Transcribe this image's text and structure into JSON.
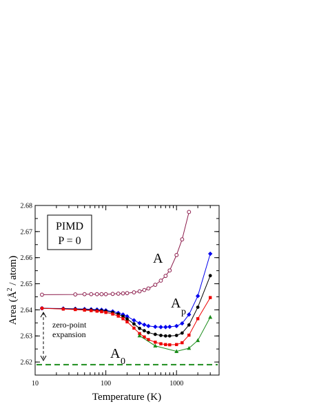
{
  "chart_data": {
    "type": "line",
    "xlabel": "Temperature  (K)",
    "ylabel_parts": {
      "prefix": "Area  (",
      "unit": "Å",
      "superscript": "2",
      "suffix": " / atom)"
    },
    "xscale": "log",
    "xlim": [
      10,
      4000
    ],
    "ylim": [
      2.615,
      2.68
    ],
    "x_ticks": [
      10,
      100,
      1000
    ],
    "x_tick_labels": [
      "10",
      "100",
      "1000"
    ],
    "y_ticks": [
      2.62,
      2.63,
      2.64,
      2.65,
      2.66,
      2.67,
      2.68
    ],
    "y_tick_labels": [
      "2.62",
      "2.63",
      "2.64",
      "2.65",
      "2.66",
      "2.67",
      "2.68"
    ],
    "grid": false,
    "legend_box": {
      "line1": "PIMD",
      "line2": "P = 0"
    },
    "series": [
      {
        "name": "A",
        "color": "#8b1a4a",
        "marker": "open-circle",
        "x": [
          12.5,
          37,
          50,
          62,
          75,
          87,
          100,
          125,
          150,
          175,
          200,
          250,
          300,
          350,
          400,
          500,
          600,
          700,
          800,
          1000,
          1200,
          1500
        ],
        "y": [
          2.6458,
          2.6459,
          2.646,
          2.646,
          2.646,
          2.646,
          2.646,
          2.6461,
          2.6462,
          2.6463,
          2.6464,
          2.6467,
          2.6471,
          2.6476,
          2.6482,
          2.6496,
          2.6512,
          2.653,
          2.6551,
          2.661,
          2.667,
          2.6775
        ]
      },
      {
        "color": "#0000ee",
        "marker": "diamond",
        "x": [
          12.5,
          25,
          37,
          50,
          62,
          75,
          87,
          100,
          125,
          150,
          175,
          200,
          250,
          300,
          350,
          400,
          500,
          600,
          700,
          800,
          1000,
          1200,
          1500,
          2000,
          3000
        ],
        "y": [
          2.6406,
          2.6405,
          2.6404,
          2.6403,
          2.6402,
          2.6401,
          2.64,
          2.6398,
          2.6394,
          2.6388,
          2.6382,
          2.6375,
          2.636,
          2.6349,
          2.6343,
          2.6338,
          2.6335,
          2.6334,
          2.6334,
          2.6335,
          2.6338,
          2.6348,
          2.6382,
          2.6453,
          2.6615
        ]
      },
      {
        "color": "#000000",
        "marker": "filled-circle",
        "x": [
          12.5,
          25,
          37,
          50,
          62,
          75,
          87,
          100,
          125,
          150,
          175,
          200,
          250,
          300,
          350,
          400,
          500,
          600,
          700,
          800,
          1000,
          1200,
          1500,
          2000,
          3000
        ],
        "y": [
          2.6406,
          2.6404,
          2.6403,
          2.6401,
          2.64,
          2.6398,
          2.6397,
          2.6395,
          2.639,
          2.6383,
          2.6375,
          2.6365,
          2.6346,
          2.6329,
          2.632,
          2.6313,
          2.6306,
          2.6302,
          2.63,
          2.63,
          2.6302,
          2.6311,
          2.6342,
          2.641,
          2.6531
        ]
      },
      {
        "color": "#ee0000",
        "marker": "square",
        "x": [
          12.5,
          25,
          37,
          50,
          62,
          75,
          87,
          100,
          125,
          150,
          175,
          200,
          250,
          300,
          350,
          400,
          500,
          600,
          700,
          800,
          1000,
          1200,
          1500,
          2000,
          3000
        ],
        "y": [
          2.6406,
          2.6403,
          2.6401,
          2.6399,
          2.6397,
          2.6395,
          2.6393,
          2.639,
          2.6384,
          2.6376,
          2.6366,
          2.6354,
          2.633,
          2.6309,
          2.6296,
          2.6286,
          2.6276,
          2.627,
          2.6267,
          2.6266,
          2.6267,
          2.6274,
          2.6303,
          2.6366,
          2.6447
        ]
      },
      {
        "color": "#1a8c1a",
        "marker": "triangle",
        "x": [
          300,
          500,
          1000,
          1500,
          2000,
          3000
        ],
        "y": [
          2.6301,
          2.6262,
          2.6241,
          2.6253,
          2.6283,
          2.6372
        ]
      }
    ],
    "reference_line": {
      "name": "A0",
      "y": 2.619,
      "color": "#1a8c1a",
      "style": "dashed"
    },
    "annotations": {
      "label_A": "A",
      "label_Ap": "A",
      "label_Ap_sub": "p",
      "label_A0": "A",
      "label_A0_sub": "0",
      "zero_point_line1": "zero-point",
      "zero_point_line2": "expansion"
    }
  }
}
